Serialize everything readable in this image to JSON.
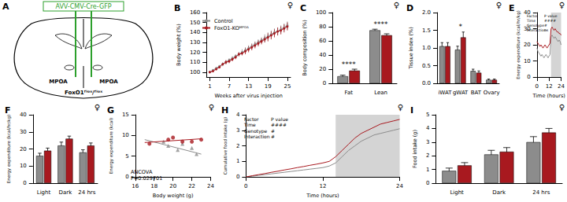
{
  "diagram": {
    "title": "A",
    "vector": "AVV-CMV-Cre-GFP",
    "regions": [
      "MPOA",
      "MPOA"
    ],
    "genotype": "FoxO1ᶠˡᵒˣ/ᶠˡᵒˣ"
  },
  "chart_data": [
    {
      "title": "B",
      "sex": "♀",
      "type": "line",
      "marker": "circle",
      "legend": "top-left",
      "x": [
        1,
        2,
        3,
        4,
        5,
        6,
        7,
        8,
        9,
        10,
        11,
        12,
        13,
        14,
        15,
        16,
        17,
        18,
        19,
        20,
        21,
        22,
        23,
        24,
        25
      ],
      "xlim": [
        0,
        26
      ],
      "xticks": [
        1,
        7,
        13,
        19,
        25
      ],
      "xlabel": "Weeks after virus injection",
      "ylim": [
        95,
        160
      ],
      "yticks": [
        100,
        110,
        120,
        130,
        140,
        150,
        160
      ],
      "ylabel": "Body weight (%)",
      "series": [
        {
          "name": "Control",
          "color": "#8c8c8c",
          "values": [
            100,
            102,
            104,
            106,
            108,
            110,
            112,
            114,
            116,
            118,
            120,
            122,
            124,
            126,
            128,
            130,
            132,
            134,
            136,
            138,
            140,
            141,
            143,
            145,
            147
          ],
          "errors": [
            1,
            1,
            1,
            1,
            2,
            2,
            2,
            2,
            2,
            2,
            3,
            3,
            3,
            3,
            3,
            3,
            3,
            4,
            4,
            4,
            4,
            4,
            4,
            4,
            4
          ]
        },
        {
          "name": "FoxO1-KOᴹᴾᴼᴬ",
          "color": "#a8191f",
          "values": [
            100,
            101,
            103,
            105,
            108,
            110,
            111,
            113,
            115,
            118,
            119,
            121,
            123,
            125,
            127,
            129,
            131,
            133,
            135,
            137,
            139,
            141,
            142,
            144,
            146
          ],
          "errors": [
            1,
            1,
            1,
            1,
            1,
            2,
            2,
            2,
            2,
            2,
            2,
            3,
            3,
            3,
            3,
            3,
            3,
            3,
            4,
            4,
            4,
            4,
            4,
            4,
            4
          ]
        }
      ]
    },
    {
      "title": "C",
      "sex": "♀",
      "type": "bar",
      "categories": [
        "Fat",
        "Lean"
      ],
      "ylim": [
        0,
        100
      ],
      "yticks": [
        0,
        20,
        40,
        60,
        80,
        100
      ],
      "ylabel": "Body composition (%)",
      "significance": [
        "****",
        "****"
      ],
      "series": [
        {
          "name": "Control",
          "color": "#8c8c8c",
          "values": [
            10,
            75
          ],
          "errors": [
            1.5,
            1.5
          ]
        },
        {
          "name": "FoxO1-KOᴹᴾᴼᴬ",
          "color": "#a8191f",
          "values": [
            18,
            68
          ],
          "errors": [
            2,
            2
          ]
        }
      ]
    },
    {
      "title": "D",
      "sex": "♀",
      "type": "bar",
      "categories": [
        "iWAT",
        "gWAT",
        "BAT",
        "Ovary"
      ],
      "ylim": [
        0,
        2
      ],
      "yticks": [
        {
          "value": 0,
          "label": "0.0"
        },
        {
          "value": 0.5,
          "label": "0.5"
        },
        {
          "value": 1,
          "label": "1.0"
        },
        {
          "value": 1.5,
          "label": "1.5"
        },
        {
          "value": 2,
          "label": "2.0"
        }
      ],
      "ylabel": "Tissue index (%)",
      "significance": [
        null,
        "*",
        null,
        null
      ],
      "series": [
        {
          "name": "Control",
          "color": "#8c8c8c",
          "values": [
            1.05,
            0.95,
            0.35,
            0.1
          ],
          "errors": [
            0.1,
            0.1,
            0.05,
            0.02
          ]
        },
        {
          "name": "FoxO1-KOᴹᴾᴼᴬ",
          "color": "#a8191f",
          "values": [
            1.05,
            1.3,
            0.3,
            0.1
          ],
          "errors": [
            0.1,
            0.15,
            0.05,
            0.02
          ]
        }
      ]
    },
    {
      "title": "E",
      "sex": "♀",
      "type": "line",
      "marker": "none",
      "x": [
        0,
        1,
        2,
        3,
        4,
        5,
        6,
        7,
        8,
        9,
        10,
        11,
        12,
        13,
        14,
        15,
        16,
        17,
        18,
        19,
        20,
        21,
        22,
        23,
        24
      ],
      "xlim": [
        0,
        24
      ],
      "xticks": [
        0,
        12,
        24
      ],
      "xlabel": "Time (hours)",
      "ylim": [
        0,
        40
      ],
      "yticks": [
        0,
        10,
        20,
        30,
        40
      ],
      "ylabel": "Energy expenditure (kcal/hr/kg)",
      "dark_phase": [
        14,
        24
      ],
      "inset": {
        "header": [
          "Factor",
          "P value"
        ],
        "rows": [
          [
            "Time",
            "####"
          ],
          [
            "Genotype",
            "#"
          ],
          [
            "Interaction",
            "ns"
          ]
        ]
      },
      "series": [
        {
          "name": "Control",
          "color": "#8c8c8c",
          "values": [
            18,
            16,
            15,
            14,
            13,
            14,
            13,
            12,
            13,
            14,
            13,
            12,
            13,
            14,
            25,
            26,
            25,
            24,
            25,
            24,
            23,
            22,
            23,
            22,
            20
          ]
        },
        {
          "name": "FoxO1-KOᴹᴾᴼᴬ",
          "color": "#a8191f",
          "values": [
            22,
            21,
            20,
            19,
            20,
            19,
            18,
            19,
            20,
            19,
            18,
            19,
            20,
            21,
            30,
            31,
            30,
            29,
            30,
            29,
            28,
            28,
            27,
            27,
            26
          ]
        }
      ]
    },
    {
      "title": "F",
      "sex": "♀",
      "type": "bar",
      "categories": [
        "Light",
        "Dark",
        "24 hrs"
      ],
      "ylim": [
        0,
        40
      ],
      "yticks": [
        0,
        10,
        20,
        30,
        40
      ],
      "ylabel": "Energy expenditure (kcal/hr/kg)",
      "series": [
        {
          "name": "Control",
          "color": "#8c8c8c",
          "values": [
            16,
            22,
            18
          ],
          "errors": [
            1.5,
            2,
            1.5
          ]
        },
        {
          "name": "FoxO1-KOᴹᴾᴼᴬ",
          "color": "#a8191f",
          "values": [
            19,
            26,
            22
          ],
          "errors": [
            1.5,
            1.5,
            1.5
          ]
        }
      ]
    },
    {
      "title": "G",
      "sex": "♀",
      "type": "scatter",
      "xlim": [
        16,
        24
      ],
      "xticks": [
        16,
        18,
        20,
        22,
        24
      ],
      "xlabel": "Body weight (g)",
      "ylim": [
        0,
        15
      ],
      "yticks": [
        0,
        5,
        10,
        15
      ],
      "ylabel": "Energy expenditure (kcal)",
      "note": [
        "ANCOVA",
        "P=0.029701"
      ],
      "series": [
        {
          "name": "Control",
          "color": "#8c8c8c",
          "marker": "triangle",
          "points": [
            [
              19,
              8.5
            ],
            [
              19.5,
              7.5
            ],
            [
              20.5,
              6.5
            ],
            [
              21,
              8
            ],
            [
              22,
              7
            ],
            [
              22.5,
              5.5
            ]
          ],
          "fit": [
            [
              17,
              9
            ],
            [
              23,
              5.5
            ]
          ]
        },
        {
          "name": "FoxO1-KOᴹᴾᴼᴬ",
          "color": "#a8191f",
          "marker": "circle",
          "points": [
            [
              17.5,
              8
            ],
            [
              19.5,
              9
            ],
            [
              20,
              9.5
            ],
            [
              21,
              8.5
            ],
            [
              22,
              8.5
            ],
            [
              23,
              9
            ]
          ],
          "fit": [
            [
              17,
              8.3
            ],
            [
              23,
              9.2
            ]
          ]
        }
      ]
    },
    {
      "title": "H",
      "sex": "♀",
      "type": "line",
      "marker": "none",
      "x": [
        0,
        1,
        2,
        3,
        4,
        5,
        6,
        7,
        8,
        9,
        10,
        11,
        12,
        13,
        14,
        15,
        16,
        17,
        18,
        19,
        20,
        21,
        22,
        23,
        24
      ],
      "xlim": [
        0,
        24
      ],
      "xticks": [
        0,
        12,
        24
      ],
      "xlabel": "Time (hours)",
      "ylim": [
        0,
        4
      ],
      "yticks": [
        0,
        1,
        2,
        3,
        4
      ],
      "ylabel": "Cumulative food intake (g)",
      "dark_phase": [
        14,
        24
      ],
      "inset": {
        "header": [
          "Factor",
          "P value"
        ],
        "rows": [
          [
            "Time",
            "####"
          ],
          [
            "Genotype",
            "#"
          ],
          [
            "Interaction",
            "#"
          ]
        ]
      },
      "series": [
        {
          "name": "Control",
          "color": "#8c8c8c",
          "values": [
            0,
            0.05,
            0.1,
            0.15,
            0.2,
            0.25,
            0.3,
            0.35,
            0.4,
            0.45,
            0.5,
            0.55,
            0.6,
            0.7,
            0.9,
            1.3,
            1.7,
            2.0,
            2.3,
            2.5,
            2.7,
            2.8,
            2.9,
            3.0,
            3.1
          ]
        },
        {
          "name": "FoxO1-KOᴹᴾᴼᴬ",
          "color": "#a8191f",
          "values": [
            0,
            0.08,
            0.15,
            0.22,
            0.3,
            0.37,
            0.45,
            0.52,
            0.6,
            0.67,
            0.75,
            0.82,
            0.9,
            1.0,
            1.3,
            1.7,
            2.1,
            2.5,
            2.8,
            3.0,
            3.2,
            3.4,
            3.5,
            3.6,
            3.7
          ]
        }
      ]
    },
    {
      "title": "I",
      "sex": "♀",
      "type": "bar",
      "categories": [
        "Light",
        "Dark",
        "24 hrs"
      ],
      "ylim": [
        0,
        5
      ],
      "yticks": [
        0,
        1,
        2,
        3,
        4,
        5
      ],
      "ylabel": "Food intake (g)",
      "series": [
        {
          "name": "Control",
          "color": "#8c8c8c",
          "values": [
            0.9,
            2.1,
            3.0
          ],
          "errors": [
            0.2,
            0.3,
            0.4
          ]
        },
        {
          "name": "FoxO1-KOᴹᴾᴼᴬ",
          "color": "#a8191f",
          "values": [
            1.3,
            2.3,
            3.7
          ],
          "errors": [
            0.2,
            0.3,
            0.3
          ]
        }
      ]
    }
  ]
}
